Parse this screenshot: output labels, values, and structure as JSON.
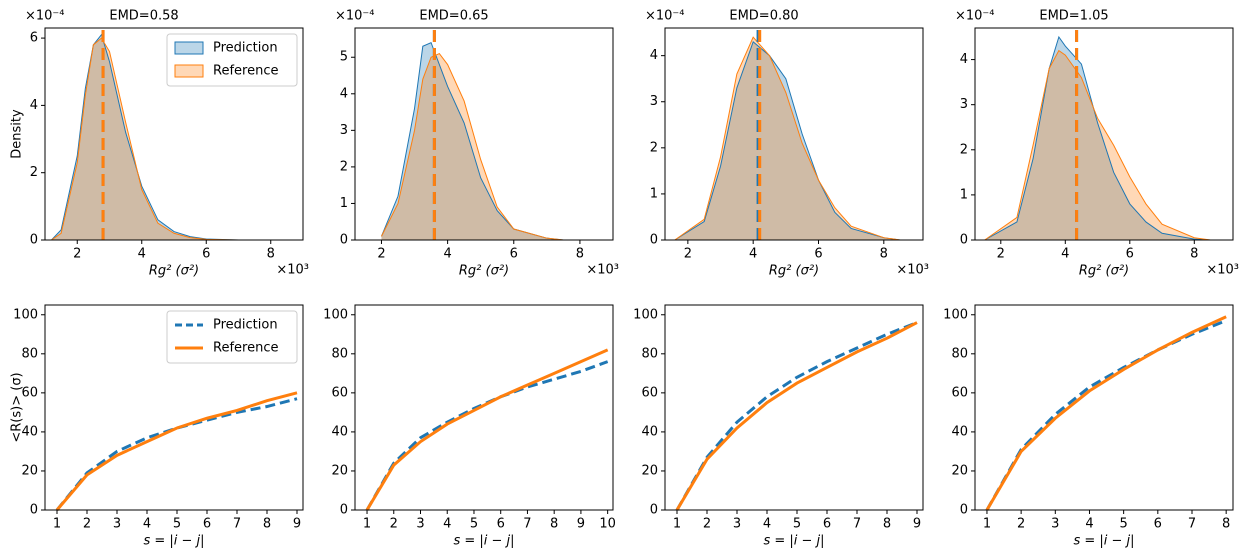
{
  "chart_data": [
    {
      "type": "area",
      "title": "EMD=0.58",
      "xlabel": "Rg² (σ²)",
      "ylabel": "Density",
      "x_offset_label": "×10³",
      "y_offset_label": "×10⁻⁴",
      "xlim": [
        1.0,
        9.0
      ],
      "ylim": [
        0,
        6.3
      ],
      "xticks": [
        2,
        4,
        6,
        8
      ],
      "yticks": [
        0,
        2,
        4,
        6
      ],
      "legend": "upper right",
      "x": [
        1.2,
        1.5,
        2,
        2.25,
        2.5,
        2.75,
        3,
        3.5,
        4,
        4.5,
        5,
        5.5,
        6,
        7
      ],
      "series": [
        {
          "name": "Prediction",
          "color": "#1f77b4",
          "mean": 2.8,
          "values": [
            0,
            0.3,
            2.5,
            4.5,
            5.8,
            6.1,
            5.3,
            3.2,
            1.6,
            0.6,
            0.25,
            0.1,
            0.03,
            0
          ]
        },
        {
          "name": "Reference",
          "color": "#ff7f0e",
          "mean": 2.8,
          "values": [
            0,
            0.2,
            2.3,
            4.3,
            5.8,
            6.0,
            5.6,
            3.5,
            1.5,
            0.5,
            0.2,
            0.07,
            0.02,
            0
          ]
        }
      ]
    },
    {
      "type": "area",
      "title": "EMD=0.65",
      "xlabel": "Rg² (σ²)",
      "x_offset_label": "×10³",
      "y_offset_label": "×10⁻⁴",
      "xlim": [
        1.2,
        9.0
      ],
      "ylim": [
        0,
        5.8
      ],
      "xticks": [
        2,
        4,
        6,
        8
      ],
      "yticks": [
        0,
        1,
        2,
        3,
        4,
        5
      ],
      "x": [
        2,
        2.5,
        3,
        3.25,
        3.5,
        3.75,
        4,
        4.5,
        5,
        5.5,
        6,
        7,
        7.5
      ],
      "series": [
        {
          "color": "#1f77b4",
          "mean": 3.6,
          "values": [
            0.1,
            1.2,
            3.6,
            5.3,
            5.4,
            4.8,
            4.2,
            3.2,
            1.7,
            0.8,
            0.3,
            0.05,
            0
          ]
        },
        {
          "color": "#ff7f0e",
          "mean": 3.6,
          "values": [
            0.1,
            1.0,
            3.0,
            4.4,
            5.0,
            5.1,
            4.8,
            3.8,
            2.2,
            0.9,
            0.3,
            0.05,
            0
          ]
        }
      ]
    },
    {
      "type": "area",
      "title": "EMD=0.80",
      "xlabel": "Rg² (σ²)",
      "x_offset_label": "×10³",
      "y_offset_label": "×10⁻⁴",
      "xlim": [
        1.3,
        9.2
      ],
      "ylim": [
        0,
        4.6
      ],
      "xticks": [
        2,
        4,
        6,
        8
      ],
      "yticks": [
        0,
        1,
        2,
        3,
        4
      ],
      "x": [
        1.6,
        2.5,
        3,
        3.5,
        4,
        4.5,
        5,
        5.5,
        6,
        6.5,
        7,
        8,
        8.5
      ],
      "series": [
        {
          "color": "#1f77b4",
          "mean": 4.15,
          "values": [
            0,
            0.4,
            1.6,
            3.3,
            4.3,
            4.0,
            3.5,
            2.3,
            1.3,
            0.6,
            0.25,
            0.05,
            0
          ]
        },
        {
          "color": "#ff7f0e",
          "mean": 4.2,
          "values": [
            0,
            0.45,
            1.8,
            3.6,
            4.4,
            4.0,
            3.2,
            2.1,
            1.3,
            0.7,
            0.3,
            0.05,
            0
          ]
        }
      ]
    },
    {
      "type": "area",
      "title": "EMD=1.05",
      "xlabel": "Rg² (σ²)",
      "x_offset_label": "×10³",
      "y_offset_label": "×10⁻⁴",
      "xlim": [
        1.2,
        9.2
      ],
      "ylim": [
        0,
        4.7
      ],
      "xticks": [
        2,
        4,
        6,
        8
      ],
      "yticks": [
        0,
        1,
        2,
        3,
        4
      ],
      "x": [
        1.5,
        2.5,
        3,
        3.5,
        3.8,
        4,
        4.5,
        5,
        5.5,
        6,
        6.5,
        7,
        8,
        8.5
      ],
      "series": [
        {
          "color": "#1f77b4",
          "mean": 4.35,
          "values": [
            0,
            0.4,
            1.8,
            3.8,
            4.5,
            4.3,
            3.9,
            2.6,
            1.5,
            0.8,
            0.4,
            0.15,
            0.02,
            0
          ]
        },
        {
          "color": "#ff7f0e",
          "mean": 4.35,
          "values": [
            0,
            0.5,
            2.1,
            3.8,
            4.2,
            4.1,
            3.6,
            2.7,
            2.1,
            1.4,
            0.8,
            0.35,
            0.05,
            0
          ]
        }
      ]
    },
    {
      "type": "line",
      "xlabel": "s = |i − j|",
      "ylabel": "<R(s)> (σ)",
      "legend": "upper right",
      "xlim": [
        0.6,
        9.2
      ],
      "ylim": [
        0,
        105
      ],
      "xticks": [
        1,
        2,
        3,
        4,
        5,
        6,
        7,
        8,
        9
      ],
      "yticks": [
        0,
        20,
        40,
        60,
        80,
        100
      ],
      "x": [
        1,
        2,
        3,
        4,
        5,
        6,
        7,
        8,
        9
      ],
      "series": [
        {
          "name": "Prediction",
          "color": "#1f77b4",
          "dashed": true,
          "values": [
            0,
            19,
            30,
            37,
            42,
            46,
            50,
            53,
            57
          ]
        },
        {
          "name": "Reference",
          "color": "#ff7f0e",
          "dashed": false,
          "values": [
            0,
            18,
            28,
            35,
            42,
            47,
            51,
            56,
            60
          ]
        }
      ]
    },
    {
      "type": "line",
      "xlabel": "s = |i − j|",
      "xlim": [
        0.55,
        10.2
      ],
      "ylim": [
        0,
        105
      ],
      "xticks": [
        1,
        2,
        3,
        4,
        5,
        6,
        7,
        8,
        9,
        10
      ],
      "yticks": [
        0,
        20,
        40,
        60,
        80,
        100
      ],
      "x": [
        1,
        2,
        3,
        4,
        5,
        6,
        7,
        8,
        9,
        10
      ],
      "series": [
        {
          "color": "#1f77b4",
          "dashed": true,
          "values": [
            0,
            24,
            37,
            45,
            52,
            58,
            63,
            67,
            71,
            76
          ]
        },
        {
          "color": "#ff7f0e",
          "dashed": false,
          "values": [
            0,
            23,
            35,
            44,
            51,
            58,
            64,
            70,
            76,
            82
          ]
        }
      ]
    },
    {
      "type": "line",
      "xlabel": "s = |i − j|",
      "xlim": [
        0.6,
        9.2
      ],
      "ylim": [
        0,
        105
      ],
      "xticks": [
        1,
        2,
        3,
        4,
        5,
        6,
        7,
        8,
        9
      ],
      "yticks": [
        0,
        20,
        40,
        60,
        80,
        100
      ],
      "x": [
        1,
        2,
        3,
        4,
        5,
        6,
        7,
        8,
        9
      ],
      "series": [
        {
          "color": "#1f77b4",
          "dashed": true,
          "values": [
            0,
            27,
            45,
            58,
            68,
            76,
            83,
            90,
            96
          ]
        },
        {
          "color": "#ff7f0e",
          "dashed": false,
          "values": [
            0,
            26,
            42,
            55,
            65,
            73,
            81,
            88,
            96
          ]
        }
      ]
    },
    {
      "type": "line",
      "xlabel": "s = |i − j|",
      "xlim": [
        0.65,
        8.2
      ],
      "ylim": [
        0,
        105
      ],
      "xticks": [
        1,
        2,
        3,
        4,
        5,
        6,
        7,
        8
      ],
      "yticks": [
        0,
        20,
        40,
        60,
        80,
        100
      ],
      "x": [
        1,
        2,
        3,
        4,
        5,
        6,
        7,
        8
      ],
      "series": [
        {
          "color": "#1f77b4",
          "dashed": true,
          "values": [
            0,
            31,
            49,
            63,
            73,
            82,
            90,
            97
          ]
        },
        {
          "color": "#ff7f0e",
          "dashed": false,
          "values": [
            0,
            30,
            47,
            61,
            72,
            82,
            91,
            99
          ]
        }
      ]
    }
  ]
}
